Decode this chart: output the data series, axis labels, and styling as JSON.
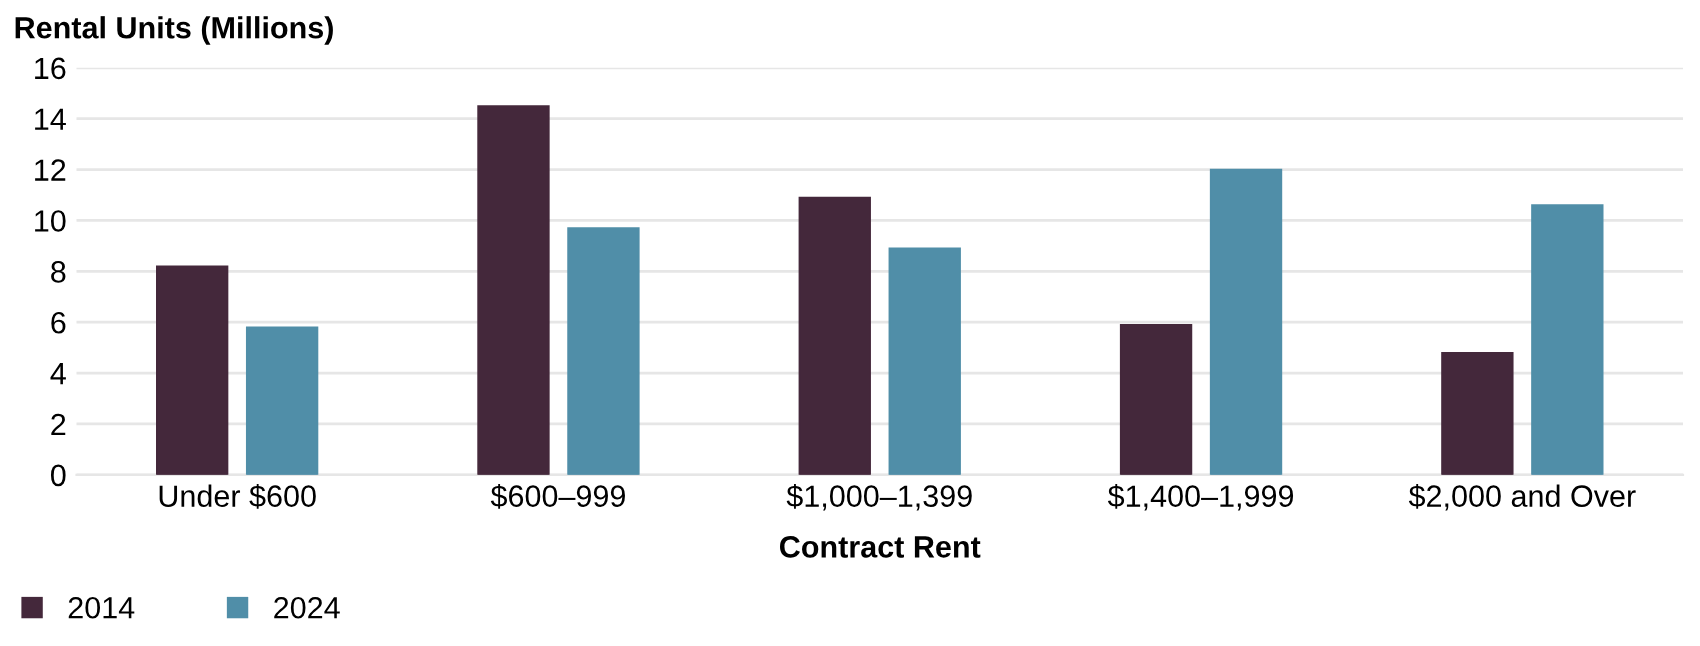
{
  "chart_data": {
    "type": "bar",
    "ylabel": "Rental Units (Millions)",
    "xlabel": "Contract Rent",
    "categories": [
      "Under $600",
      "$600–999",
      "$1,000–1,399",
      "$1,400–1,999",
      "$2,000 and Over"
    ],
    "series": [
      {
        "name": "2014",
        "color": "#44283b",
        "values": [
          8.2,
          14.5,
          10.9,
          5.9,
          4.8
        ]
      },
      {
        "name": "2024",
        "color": "#508ea8",
        "values": [
          5.8,
          9.7,
          8.9,
          12.0,
          10.6
        ]
      }
    ],
    "ylim": [
      0,
      16
    ],
    "yticks": [
      0,
      2,
      4,
      6,
      8,
      10,
      12,
      14,
      16
    ],
    "grid": "y",
    "legend": "bottom left"
  }
}
